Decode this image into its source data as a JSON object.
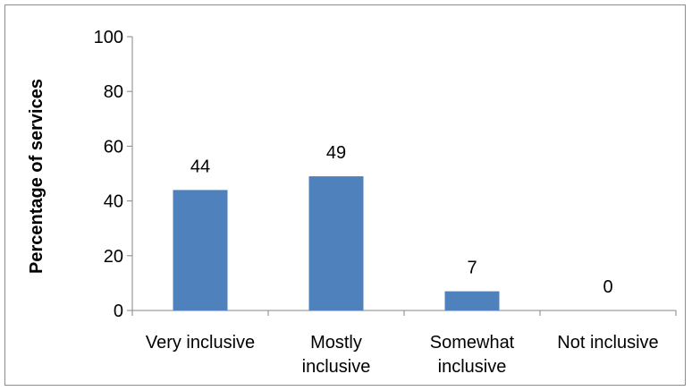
{
  "chart_data": {
    "type": "bar",
    "title": "",
    "xlabel": "",
    "ylabel": "Percentage of services",
    "categories": [
      "Very inclusive",
      "Mostly inclusive",
      "Somewhat inclusive",
      "Not inclusive"
    ],
    "category_lines": [
      [
        "Very inclusive"
      ],
      [
        "Mostly",
        "inclusive"
      ],
      [
        "Somewhat",
        "inclusive"
      ],
      [
        "Not inclusive"
      ]
    ],
    "values": [
      44,
      49,
      7,
      0
    ],
    "data_labels": [
      "44",
      "49",
      "7",
      "0"
    ],
    "ylim": [
      0,
      100
    ],
    "yticks": [
      0,
      20,
      40,
      60,
      80,
      100
    ],
    "grid": false,
    "legend": "none",
    "colors": {
      "bar": "#4f81bd",
      "axis": "#868686",
      "border": "#8c8c8c"
    }
  }
}
